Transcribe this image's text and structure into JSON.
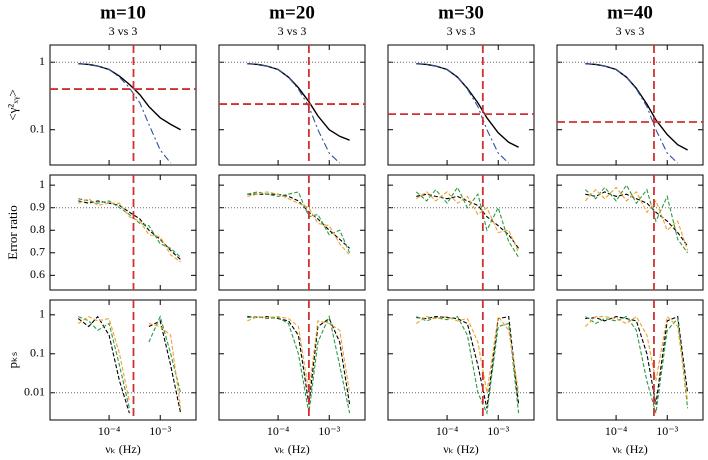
{
  "chart_data": [
    {
      "type": "line",
      "title": "m=10",
      "subtitle": "3 vs 3",
      "ylabel": "<γ²ₓᵧ>",
      "xlog": true,
      "ylog": true,
      "xlim": [
        7e-06,
        0.005
      ],
      "ylim": [
        0.03,
        1.8
      ],
      "yticks": [
        1,
        0.1
      ],
      "ref_y": 1,
      "hline": 0.4,
      "vline": 0.0003,
      "x": [
        2.5e-05,
        4e-05,
        6e-05,
        0.0001,
        0.00016,
        0.00025,
        0.0004,
        0.0006,
        0.001,
        0.0016,
        0.0025
      ],
      "series": [
        {
          "color": "#000000",
          "dash": "solid",
          "values": [
            0.95,
            0.93,
            0.88,
            0.78,
            0.62,
            0.47,
            0.33,
            0.22,
            0.15,
            0.12,
            0.1
          ]
        },
        {
          "color": "#3050a0",
          "dash": "dashdot",
          "values": [
            0.95,
            0.93,
            0.88,
            0.78,
            0.6,
            0.42,
            0.25,
            0.12,
            0.05,
            0.032,
            null
          ]
        }
      ]
    },
    {
      "type": "line",
      "title": "m=20",
      "subtitle": "3 vs 3",
      "xlog": true,
      "ylog": true,
      "xlim": [
        7e-06,
        0.005
      ],
      "ylim": [
        0.03,
        1.8
      ],
      "ref_y": 1,
      "hline": 0.24,
      "vline": 0.0004,
      "x": [
        2.5e-05,
        4e-05,
        6e-05,
        0.0001,
        0.00016,
        0.00025,
        0.0004,
        0.0006,
        0.001,
        0.0016,
        0.0025
      ],
      "series": [
        {
          "color": "#000000",
          "dash": "solid",
          "values": [
            0.95,
            0.93,
            0.88,
            0.78,
            0.6,
            0.42,
            0.26,
            0.16,
            0.1,
            0.08,
            0.07
          ]
        },
        {
          "color": "#3050a0",
          "dash": "dashdot",
          "values": [
            0.95,
            0.93,
            0.88,
            0.78,
            0.6,
            0.4,
            0.22,
            0.1,
            0.045,
            0.032,
            null
          ]
        }
      ]
    },
    {
      "type": "line",
      "title": "m=30",
      "subtitle": "3 vs 3",
      "xlog": true,
      "ylog": true,
      "xlim": [
        7e-06,
        0.005
      ],
      "ylim": [
        0.03,
        1.8
      ],
      "ref_y": 1,
      "hline": 0.17,
      "vline": 0.0005,
      "x": [
        2.5e-05,
        4e-05,
        6e-05,
        0.0001,
        0.00016,
        0.00025,
        0.0004,
        0.0006,
        0.001,
        0.0016,
        0.0025
      ],
      "series": [
        {
          "color": "#000000",
          "dash": "solid",
          "values": [
            0.95,
            0.93,
            0.88,
            0.78,
            0.6,
            0.41,
            0.25,
            0.15,
            0.09,
            0.065,
            0.055
          ]
        },
        {
          "color": "#3050a0",
          "dash": "dashdot",
          "values": [
            0.95,
            0.93,
            0.88,
            0.78,
            0.6,
            0.4,
            0.22,
            0.1,
            0.045,
            0.032,
            null
          ]
        }
      ]
    },
    {
      "type": "line",
      "title": "m=40",
      "subtitle": "3 vs 3",
      "xlog": true,
      "ylog": true,
      "xlim": [
        7e-06,
        0.005
      ],
      "ylim": [
        0.03,
        1.8
      ],
      "ref_y": 1,
      "hline": 0.13,
      "vline": 0.00055,
      "x": [
        2.5e-05,
        4e-05,
        6e-05,
        0.0001,
        0.00016,
        0.00025,
        0.0004,
        0.0006,
        0.001,
        0.0016,
        0.0025
      ],
      "series": [
        {
          "color": "#000000",
          "dash": "solid",
          "values": [
            0.95,
            0.93,
            0.88,
            0.78,
            0.6,
            0.41,
            0.24,
            0.14,
            0.085,
            0.06,
            0.05
          ]
        },
        {
          "color": "#3050a0",
          "dash": "dashdot",
          "values": [
            0.95,
            0.93,
            0.88,
            0.78,
            0.6,
            0.4,
            0.22,
            0.1,
            0.045,
            0.032,
            null
          ]
        }
      ]
    },
    {
      "type": "line",
      "ylabel": "Error ratio",
      "xlog": true,
      "xlim": [
        7e-06,
        0.005
      ],
      "ylim": [
        0.535,
        1.045
      ],
      "yticks": [
        0.6,
        0.7,
        0.8,
        0.9,
        1
      ],
      "ref_y": 0.9,
      "vline": 0.0003,
      "x": [
        2.5e-05,
        4e-05,
        6e-05,
        0.0001,
        0.00016,
        0.00025,
        0.0004,
        0.0006,
        0.001,
        0.0016,
        0.0025
      ],
      "series": [
        {
          "color": "#000000",
          "dash": "dashed",
          "values": [
            0.93,
            0.92,
            0.93,
            0.92,
            0.91,
            0.88,
            0.85,
            0.8,
            0.76,
            0.71,
            0.67
          ]
        },
        {
          "color": "#2e9a40",
          "dash": "dashed",
          "values": [
            0.94,
            0.93,
            0.92,
            0.93,
            0.9,
            0.87,
            0.83,
            0.82,
            0.74,
            0.72,
            0.68
          ]
        },
        {
          "color": "#f0a030",
          "dash": "dashed",
          "values": [
            0.92,
            0.94,
            0.91,
            0.92,
            0.92,
            0.86,
            0.84,
            0.78,
            0.77,
            0.69,
            0.66
          ]
        }
      ]
    },
    {
      "type": "line",
      "xlog": true,
      "xlim": [
        7e-06,
        0.005
      ],
      "ylim": [
        0.535,
        1.045
      ],
      "ref_y": 0.9,
      "vline": 0.0004,
      "x": [
        2.5e-05,
        4e-05,
        6e-05,
        0.0001,
        0.00016,
        0.00025,
        0.0004,
        0.0006,
        0.001,
        0.0016,
        0.0025
      ],
      "series": [
        {
          "color": "#000000",
          "dash": "dashed",
          "values": [
            0.96,
            0.96,
            0.96,
            0.96,
            0.95,
            0.93,
            0.88,
            0.85,
            0.8,
            0.76,
            0.72
          ]
        },
        {
          "color": "#2e9a40",
          "dash": "dashed",
          "values": [
            0.96,
            0.97,
            0.96,
            0.95,
            0.96,
            0.97,
            0.86,
            0.87,
            0.78,
            0.8,
            0.7
          ]
        },
        {
          "color": "#f0a030",
          "dash": "dashed",
          "values": [
            0.95,
            0.96,
            0.97,
            0.96,
            0.94,
            0.92,
            0.9,
            0.83,
            0.82,
            0.74,
            0.69
          ]
        }
      ]
    },
    {
      "type": "line",
      "xlog": true,
      "xlim": [
        7e-06,
        0.005
      ],
      "ylim": [
        0.535,
        1.045
      ],
      "ref_y": 0.9,
      "vline": 0.0005,
      "x": [
        2.5e-05,
        4e-05,
        6e-05,
        0.0001,
        0.00016,
        0.00025,
        0.0004,
        0.0006,
        0.001,
        0.0016,
        0.0025
      ],
      "series": [
        {
          "color": "#000000",
          "dash": "dashed",
          "values": [
            0.95,
            0.96,
            0.95,
            0.94,
            0.95,
            0.93,
            0.91,
            0.86,
            0.82,
            0.78,
            0.72
          ]
        },
        {
          "color": "#2e9a40",
          "dash": "dashed",
          "values": [
            0.97,
            0.93,
            0.98,
            0.92,
            0.99,
            0.9,
            0.96,
            0.8,
            0.9,
            0.75,
            0.68
          ]
        },
        {
          "color": "#f0a030",
          "dash": "dashed",
          "values": [
            0.94,
            0.97,
            0.93,
            0.97,
            0.92,
            0.95,
            0.87,
            0.9,
            0.79,
            0.8,
            0.7
          ]
        }
      ]
    },
    {
      "type": "line",
      "xlog": true,
      "xlim": [
        7e-06,
        0.005
      ],
      "ylim": [
        0.535,
        1.045
      ],
      "ref_y": 0.9,
      "vline": 0.00055,
      "x": [
        2.5e-05,
        4e-05,
        6e-05,
        0.0001,
        0.00016,
        0.00025,
        0.0004,
        0.0006,
        0.001,
        0.0016,
        0.0025
      ],
      "series": [
        {
          "color": "#000000",
          "dash": "dashed",
          "values": [
            0.96,
            0.95,
            0.97,
            0.95,
            0.96,
            0.94,
            0.92,
            0.88,
            0.84,
            0.79,
            0.73
          ]
        },
        {
          "color": "#2e9a40",
          "dash": "dashed",
          "values": [
            0.98,
            0.94,
            0.99,
            0.93,
            1.0,
            0.92,
            0.98,
            0.84,
            0.95,
            0.76,
            0.7
          ]
        },
        {
          "color": "#f0a030",
          "dash": "dashed",
          "values": [
            0.93,
            0.98,
            0.94,
            0.99,
            0.93,
            0.97,
            0.88,
            0.93,
            0.8,
            0.84,
            0.71
          ]
        }
      ]
    },
    {
      "type": "line",
      "ylabel": "pₖₛ",
      "xlabel": "νₖ (Hz)",
      "xlog": true,
      "ylog": true,
      "xlim": [
        7e-06,
        0.005
      ],
      "ylim": [
        0.002,
        2.4
      ],
      "xticks": [
        {
          "value": 0.0001,
          "label": "10⁻⁴"
        },
        {
          "value": 0.001,
          "label": "10⁻³"
        }
      ],
      "yticks": [
        1,
        0.1,
        0.01
      ],
      "ref_y": 0.01,
      "vline": 0.0003,
      "x": [
        2.5e-05,
        4e-05,
        6e-05,
        0.0001,
        0.00016,
        0.00025,
        0.0004,
        0.0006,
        0.001,
        0.0016,
        0.0025
      ],
      "series": [
        {
          "color": "#000000",
          "dash": "dashed",
          "values": [
            0.8,
            0.5,
            0.9,
            0.3,
            0.02,
            0.003,
            null,
            0.5,
            0.7,
            0.05,
            0.003
          ]
        },
        {
          "color": "#2e9a40",
          "dash": "dashed",
          "values": [
            0.9,
            0.7,
            0.4,
            0.6,
            0.05,
            0.004,
            null,
            0.2,
            0.9,
            0.1,
            0.01
          ]
        },
        {
          "color": "#f0a030",
          "dash": "dashed",
          "values": [
            0.6,
            0.9,
            0.7,
            0.8,
            0.1,
            0.006,
            null,
            0.6,
            0.5,
            0.3,
            0.004
          ]
        }
      ]
    },
    {
      "type": "line",
      "xlabel": "νₖ (Hz)",
      "xlog": true,
      "ylog": true,
      "xlim": [
        7e-06,
        0.005
      ],
      "ylim": [
        0.002,
        2.4
      ],
      "xticks": [
        {
          "value": 0.0001,
          "label": "10⁻⁴"
        },
        {
          "value": 0.001,
          "label": "10⁻³"
        }
      ],
      "ref_y": 0.01,
      "vline": 0.0004,
      "x": [
        2.5e-05,
        4e-05,
        6e-05,
        0.0001,
        0.00016,
        0.00025,
        0.0004,
        0.0006,
        0.001,
        0.0016,
        0.0025
      ],
      "series": [
        {
          "color": "#000000",
          "dash": "dashed",
          "values": [
            0.9,
            0.85,
            0.9,
            0.8,
            0.7,
            0.3,
            0.005,
            0.5,
            0.8,
            0.2,
            0.005
          ]
        },
        {
          "color": "#2e9a40",
          "dash": "dashed",
          "values": [
            0.85,
            0.9,
            0.8,
            0.85,
            0.6,
            0.1,
            0.003,
            0.2,
            0.9,
            0.05,
            0.003
          ]
        },
        {
          "color": "#f0a030",
          "dash": "dashed",
          "values": [
            0.7,
            0.9,
            0.85,
            0.9,
            0.8,
            0.5,
            0.01,
            0.7,
            0.6,
            0.4,
            0.01
          ]
        }
      ]
    },
    {
      "type": "line",
      "xlabel": "νₖ (Hz)",
      "xlog": true,
      "ylog": true,
      "xlim": [
        7e-06,
        0.005
      ],
      "ylim": [
        0.002,
        2.4
      ],
      "xticks": [
        {
          "value": 0.0001,
          "label": "10⁻⁴"
        },
        {
          "value": 0.001,
          "label": "10⁻³"
        }
      ],
      "ref_y": 0.01,
      "vline": 0.0005,
      "x": [
        2.5e-05,
        4e-05,
        6e-05,
        0.0001,
        0.00016,
        0.00025,
        0.0004,
        0.0006,
        0.001,
        0.0016,
        0.0025
      ],
      "series": [
        {
          "color": "#000000",
          "dash": "dashed",
          "values": [
            0.85,
            0.8,
            0.9,
            0.85,
            0.8,
            0.6,
            0.05,
            0.004,
            0.8,
            0.9,
            0.005
          ]
        },
        {
          "color": "#2e9a40",
          "dash": "dashed",
          "values": [
            0.9,
            0.7,
            0.85,
            0.75,
            0.9,
            0.3,
            0.01,
            0.003,
            0.5,
            0.6,
            0.003
          ]
        },
        {
          "color": "#f0a030",
          "dash": "dashed",
          "values": [
            0.6,
            0.9,
            0.8,
            0.9,
            0.7,
            0.8,
            0.2,
            0.01,
            0.9,
            0.4,
            0.01
          ]
        }
      ]
    },
    {
      "type": "line",
      "xlabel": "νₖ (Hz)",
      "xlog": true,
      "ylog": true,
      "xlim": [
        7e-06,
        0.005
      ],
      "ylim": [
        0.002,
        2.4
      ],
      "xticks": [
        {
          "value": 0.0001,
          "label": "10⁻⁴"
        },
        {
          "value": 0.001,
          "label": "10⁻³"
        }
      ],
      "ref_y": 0.01,
      "vline": 0.00055,
      "x": [
        2.5e-05,
        4e-05,
        6e-05,
        0.0001,
        0.00016,
        0.00025,
        0.0004,
        0.0006,
        0.001,
        0.0016,
        0.0025
      ],
      "series": [
        {
          "color": "#000000",
          "dash": "dashed",
          "values": [
            0.8,
            0.85,
            0.7,
            0.9,
            0.8,
            0.7,
            0.1,
            0.005,
            0.7,
            0.9,
            0.01
          ]
        },
        {
          "color": "#2e9a40",
          "dash": "dashed",
          "values": [
            0.9,
            0.6,
            0.8,
            0.7,
            0.9,
            0.4,
            0.02,
            0.003,
            0.4,
            0.8,
            0.004
          ]
        },
        {
          "color": "#f0a030",
          "dash": "dashed",
          "values": [
            0.5,
            0.9,
            0.9,
            0.8,
            0.6,
            0.9,
            0.3,
            0.02,
            0.9,
            0.5,
            0.006
          ]
        }
      ]
    }
  ]
}
